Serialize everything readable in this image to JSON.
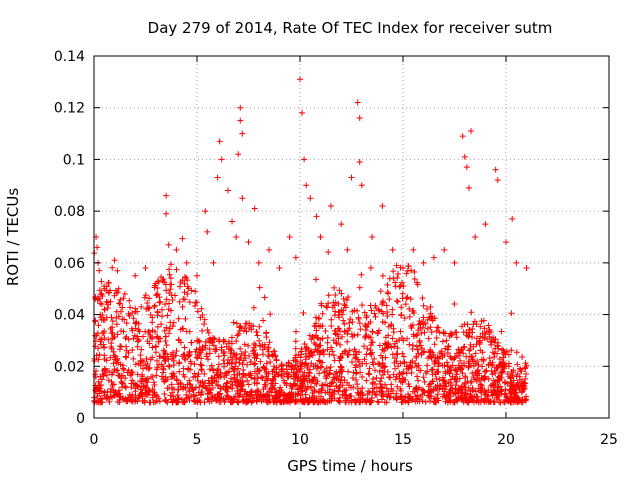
{
  "chart_data": {
    "type": "scatter",
    "title": "Day 279 of 2014, Rate Of TEC Index for receiver sutm",
    "xlabel": "GPS time / hours",
    "ylabel": "ROTI / TECUs",
    "xlim": [
      0,
      25
    ],
    "ylim": [
      0,
      0.14
    ],
    "xticks": [
      0,
      5,
      10,
      15,
      20,
      25
    ],
    "xtick_labels": [
      "0",
      "5",
      "10",
      "15",
      "20",
      "25"
    ],
    "yticks": [
      0,
      0.02,
      0.04,
      0.06,
      0.08,
      0.1,
      0.12,
      0.14
    ],
    "ytick_labels": [
      "0",
      "0.02",
      "0.04",
      "0.06",
      "0.08",
      "0.1",
      "0.12",
      "0.14"
    ],
    "grid": true,
    "marker": "+",
    "series": [
      {
        "name": "ROTI",
        "color": "#ff0000",
        "x": [
          0.1,
          0.15,
          0.2,
          0.25,
          0.3,
          0.5,
          0.8,
          1.0,
          1.2,
          1.5,
          2.0,
          2.5,
          3.0,
          3.5,
          3.5,
          4.0,
          4.5,
          5.0,
          5.4,
          5.5,
          5.8,
          6.0,
          6.1,
          6.2,
          6.5,
          6.7,
          6.9,
          7.0,
          7.1,
          7.1,
          7.2,
          7.2,
          7.5,
          7.8,
          8.0,
          8.5,
          9.0,
          9.5,
          9.8,
          10.0,
          10.1,
          10.2,
          10.3,
          10.5,
          10.8,
          11.0,
          11.5,
          12.0,
          12.3,
          12.5,
          12.8,
          12.9,
          12.9,
          13.0,
          13.5,
          14.0,
          14.5,
          15.0,
          15.5,
          16.0,
          16.5,
          17.0,
          17.5,
          17.9,
          18.0,
          18.1,
          18.2,
          18.3,
          18.5,
          19.0,
          19.5,
          19.6,
          20.0,
          20.3,
          20.5,
          21.0
        ],
        "y": [
          0.07,
          0.066,
          0.06,
          0.057,
          0.04,
          0.05,
          0.045,
          0.061,
          0.05,
          0.048,
          0.055,
          0.058,
          0.052,
          0.086,
          0.079,
          0.065,
          0.06,
          0.055,
          0.08,
          0.072,
          0.06,
          0.093,
          0.107,
          0.1,
          0.088,
          0.076,
          0.07,
          0.102,
          0.12,
          0.115,
          0.11,
          0.085,
          0.068,
          0.081,
          0.06,
          0.065,
          0.058,
          0.07,
          0.062,
          0.131,
          0.118,
          0.1,
          0.09,
          0.085,
          0.078,
          0.07,
          0.082,
          0.075,
          0.065,
          0.093,
          0.122,
          0.116,
          0.099,
          0.09,
          0.07,
          0.082,
          0.065,
          0.058,
          0.065,
          0.06,
          0.062,
          0.065,
          0.06,
          0.109,
          0.101,
          0.097,
          0.089,
          0.111,
          0.07,
          0.075,
          0.096,
          0.092,
          0.068,
          0.077,
          0.06,
          0.058
        ]
      }
    ]
  }
}
